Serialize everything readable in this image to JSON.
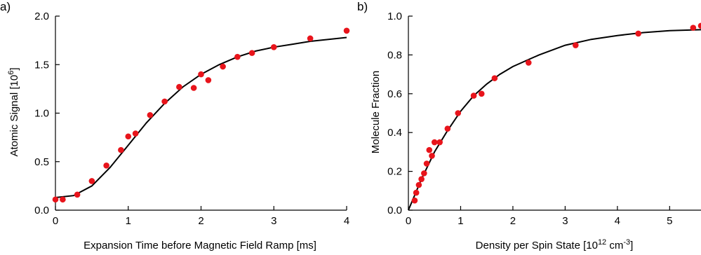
{
  "chart_data": [
    {
      "type": "scatter",
      "panel_label": "a)",
      "xlabel": "Expansion Time before Magnetic Field Ramp [ms]",
      "ylabel": "Atomic Signal [10",
      "ylabel_sup": "6",
      "ylabel_end": "]",
      "xlim": [
        0,
        4
      ],
      "ylim": [
        0,
        2.0
      ],
      "xticks": [
        0,
        1,
        2,
        3,
        4
      ],
      "xtick_labels": [
        "0",
        "1",
        "2",
        "3",
        "4"
      ],
      "yticks": [
        0,
        0.5,
        1.0,
        1.5,
        2.0
      ],
      "ytick_labels": [
        "0.0",
        "0.5",
        "1.0",
        "1.5",
        "2.0"
      ],
      "grid": false,
      "marker_color": "#e8141b",
      "line_color": "#000000",
      "series": [
        {
          "points": [
            [
              0.0,
              0.11
            ],
            [
              0.1,
              0.11
            ],
            [
              0.3,
              0.16
            ],
            [
              0.5,
              0.3
            ],
            [
              0.7,
              0.46
            ],
            [
              0.9,
              0.62
            ],
            [
              1.0,
              0.76
            ],
            [
              1.1,
              0.79
            ],
            [
              1.3,
              0.98
            ],
            [
              1.5,
              1.12
            ],
            [
              1.7,
              1.27
            ],
            [
              1.9,
              1.26
            ],
            [
              2.0,
              1.4
            ],
            [
              2.1,
              1.34
            ],
            [
              2.3,
              1.48
            ],
            [
              2.5,
              1.58
            ],
            [
              2.7,
              1.62
            ],
            [
              3.0,
              1.68
            ],
            [
              3.5,
              1.77
            ],
            [
              4.0,
              1.85
            ]
          ]
        }
      ],
      "fit_curve": [
        [
          0.0,
          0.13
        ],
        [
          0.25,
          0.15
        ],
        [
          0.5,
          0.25
        ],
        [
          0.75,
          0.44
        ],
        [
          1.0,
          0.67
        ],
        [
          1.25,
          0.9
        ],
        [
          1.5,
          1.1
        ],
        [
          1.75,
          1.27
        ],
        [
          2.0,
          1.4
        ],
        [
          2.25,
          1.5
        ],
        [
          2.5,
          1.58
        ],
        [
          2.75,
          1.64
        ],
        [
          3.0,
          1.68
        ],
        [
          3.25,
          1.71
        ],
        [
          3.5,
          1.74
        ],
        [
          3.75,
          1.76
        ],
        [
          4.0,
          1.78
        ]
      ]
    },
    {
      "type": "scatter",
      "panel_label": "b)",
      "xlabel": "Density per Spin State [10",
      "xlabel_sup1": "12",
      "xlabel_mid": " cm",
      "xlabel_sup2": "-3",
      "xlabel_end": "]",
      "ylabel": "Molecule Fraction",
      "xlim": [
        0,
        5.6
      ],
      "ylim": [
        0,
        1.0
      ],
      "xticks": [
        0,
        1,
        2,
        3,
        4,
        5
      ],
      "xtick_labels": [
        "0",
        "1",
        "2",
        "3",
        "4",
        "5"
      ],
      "yticks": [
        0,
        0.2,
        0.4,
        0.6,
        0.8,
        1.0
      ],
      "ytick_labels": [
        "0.0",
        "0.2",
        "0.4",
        "0.6",
        "0.8",
        "1.0"
      ],
      "grid": false,
      "marker_color": "#e8141b",
      "line_color": "#000000",
      "series": [
        {
          "points": [
            [
              0.12,
              0.05
            ],
            [
              0.15,
              0.09
            ],
            [
              0.2,
              0.13
            ],
            [
              0.25,
              0.16
            ],
            [
              0.3,
              0.19
            ],
            [
              0.35,
              0.24
            ],
            [
              0.4,
              0.31
            ],
            [
              0.45,
              0.28
            ],
            [
              0.5,
              0.35
            ],
            [
              0.6,
              0.35
            ],
            [
              0.75,
              0.42
            ],
            [
              0.95,
              0.5
            ],
            [
              1.25,
              0.59
            ],
            [
              1.4,
              0.6
            ],
            [
              1.65,
              0.68
            ],
            [
              2.3,
              0.76
            ],
            [
              3.2,
              0.85
            ],
            [
              4.4,
              0.91
            ],
            [
              5.45,
              0.94
            ],
            [
              5.6,
              0.95
            ]
          ]
        }
      ],
      "fit_curve": [
        [
          0.0,
          0.0
        ],
        [
          0.25,
          0.16
        ],
        [
          0.5,
          0.3
        ],
        [
          0.75,
          0.41
        ],
        [
          1.0,
          0.51
        ],
        [
          1.25,
          0.59
        ],
        [
          1.5,
          0.65
        ],
        [
          1.75,
          0.7
        ],
        [
          2.0,
          0.74
        ],
        [
          2.5,
          0.8
        ],
        [
          3.0,
          0.85
        ],
        [
          3.5,
          0.88
        ],
        [
          4.0,
          0.9
        ],
        [
          4.5,
          0.915
        ],
        [
          5.0,
          0.925
        ],
        [
          5.6,
          0.93
        ]
      ]
    }
  ]
}
